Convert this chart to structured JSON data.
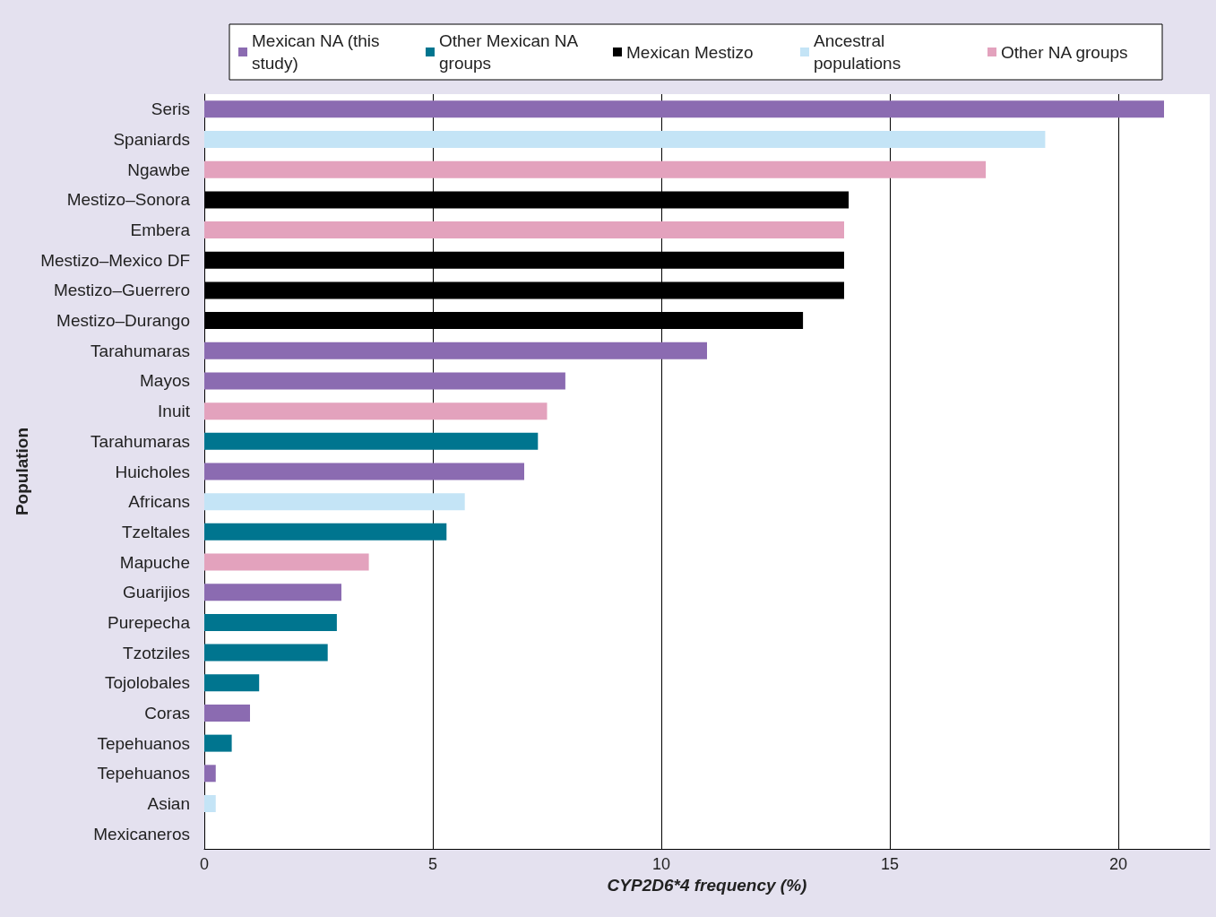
{
  "chart_data": {
    "type": "bar",
    "orientation": "horizontal",
    "xlabel": "CYP2D6*4 frequency (%)",
    "ylabel": "Population",
    "categories": [
      "Seris",
      "Spaniards",
      "Ngawbe",
      "Mestizo–Sonora",
      "Embera",
      "Mestizo–Mexico DF",
      "Mestizo–Guerrero",
      "Mestizo–Durango",
      "Tarahumaras",
      "Mayos",
      "Inuit",
      "Tarahumaras",
      "Huicholes",
      "Africans",
      "Tzeltales",
      "Mapuche",
      "Guarijios",
      "Purepecha",
      "Tzotziles",
      "Tojolobales",
      "Coras",
      "Tepehuanos",
      "Tepehuanos",
      "Asian",
      "Mexicaneros"
    ],
    "series": [
      {
        "name": "Mexican NA (this study)",
        "color": "#8b6bb1",
        "values": [
          21.0,
          null,
          null,
          null,
          null,
          null,
          null,
          null,
          11.0,
          7.9,
          null,
          null,
          7.0,
          null,
          null,
          null,
          3.0,
          null,
          null,
          null,
          1.0,
          null,
          0.25,
          null,
          0
        ]
      },
      {
        "name": "Other Mexican NA groups",
        "color": "#00758f",
        "values": [
          null,
          null,
          null,
          null,
          null,
          null,
          null,
          null,
          null,
          null,
          null,
          7.3,
          null,
          null,
          5.3,
          null,
          null,
          2.9,
          2.7,
          1.2,
          null,
          0.6,
          null,
          null,
          null
        ]
      },
      {
        "name": "Mexican Mestizo",
        "color": "#000000",
        "values": [
          null,
          null,
          null,
          14.1,
          null,
          14.0,
          14.0,
          13.1,
          null,
          null,
          null,
          null,
          null,
          null,
          null,
          null,
          null,
          null,
          null,
          null,
          null,
          null,
          null,
          null,
          null
        ]
      },
      {
        "name": "Ancestral populations",
        "color": "#c4e4f6",
        "values": [
          null,
          18.4,
          null,
          null,
          null,
          null,
          null,
          null,
          null,
          null,
          null,
          null,
          null,
          5.7,
          null,
          null,
          null,
          null,
          null,
          null,
          null,
          null,
          null,
          0.25,
          null
        ]
      },
      {
        "name": "Other NA groups",
        "color": "#e3a2bd",
        "values": [
          null,
          null,
          17.1,
          null,
          14.0,
          null,
          null,
          null,
          null,
          null,
          7.5,
          null,
          null,
          null,
          null,
          3.6,
          null,
          null,
          null,
          null,
          null,
          null,
          null,
          null,
          null
        ]
      }
    ],
    "xlim": [
      0,
      22
    ],
    "xticks": [
      0,
      5,
      10,
      15,
      20
    ],
    "grid": "x",
    "legend": "top"
  }
}
